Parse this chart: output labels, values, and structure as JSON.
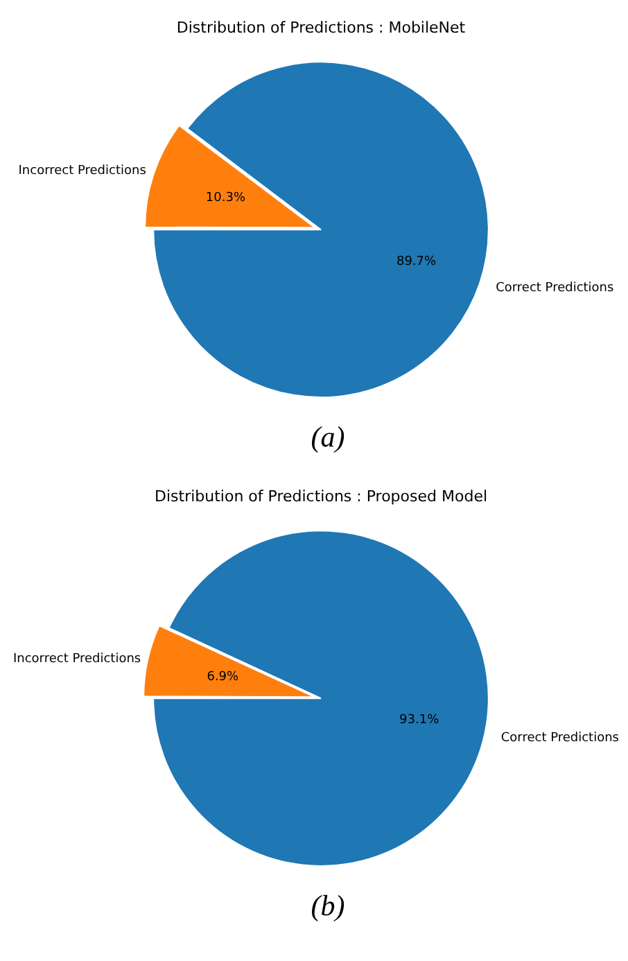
{
  "chart_data": [
    {
      "type": "pie",
      "title": "Distribution of Predictions : MobileNet",
      "categories": [
        "Incorrect Predictions",
        "Correct Predictions"
      ],
      "values": [
        10.3,
        89.7
      ],
      "colors": [
        "#ff7f0e",
        "#1f77b4"
      ],
      "value_labels": [
        "10.3%",
        "89.7%"
      ],
      "annotations": [
        "(a)"
      ]
    },
    {
      "type": "pie",
      "title": "Distribution of Predictions : Proposed Model",
      "categories": [
        "Incorrect Predictions",
        "Correct Predictions"
      ],
      "values": [
        6.9,
        93.1
      ],
      "colors": [
        "#ff7f0e",
        "#1f77b4"
      ],
      "value_labels": [
        "6.9%",
        "93.1%"
      ],
      "annotations": [
        "(b)"
      ]
    }
  ]
}
